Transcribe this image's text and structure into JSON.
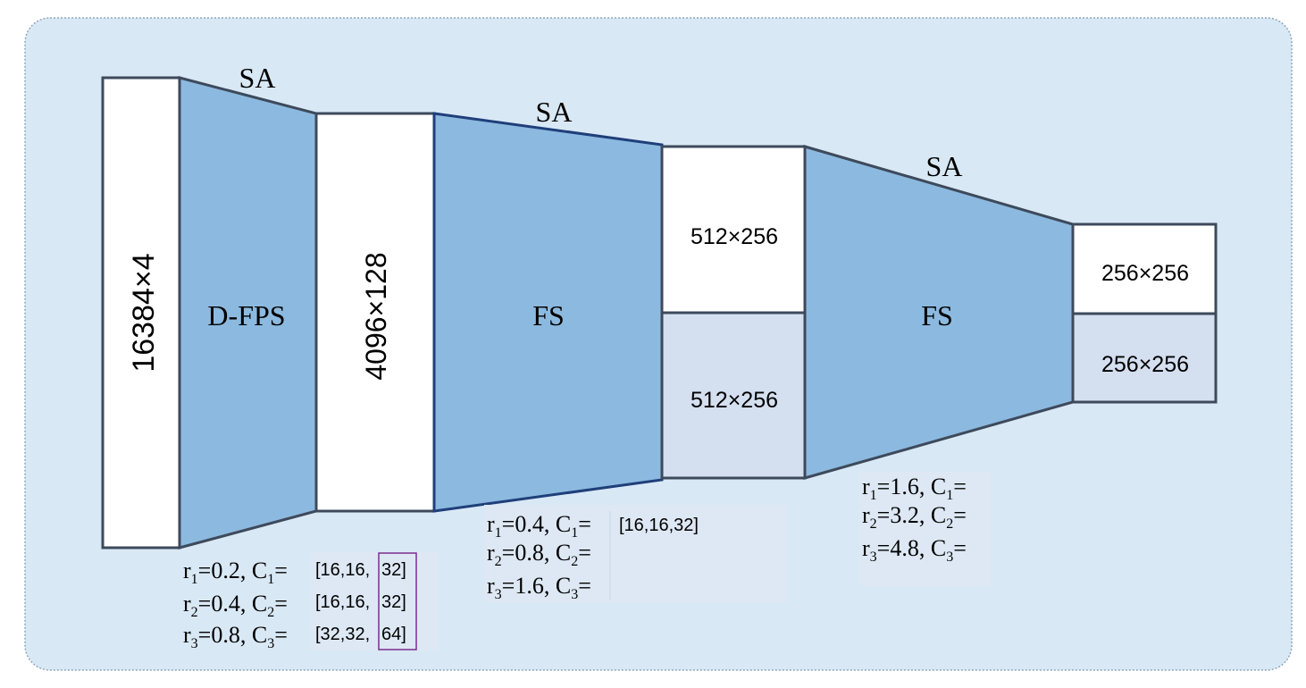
{
  "colors": {
    "background_panel": "#d9e8f5",
    "panel_border": "#8fa6bd",
    "trapezoid_fill": "#8cb9df",
    "trapezoid_stroke_dark": "#3d4a5c",
    "trapezoid_stroke_blue": "#1f3f7a",
    "box_white": "#ffffff",
    "box_light": "#d4dff0",
    "box_stroke": "#3d4a5c",
    "highlight_border": "#7b2d8e"
  },
  "stages": {
    "input": {
      "label": "16384×4"
    },
    "sa1": {
      "title": "SA",
      "method": "D-FPS"
    },
    "feat1": {
      "label": "4096×128"
    },
    "sa2": {
      "title": "SA",
      "method": "FS"
    },
    "feat2": {
      "top": "512×256",
      "bottom": "512×256"
    },
    "sa3": {
      "title": "SA",
      "method": "FS"
    },
    "feat3": {
      "top": "256×256",
      "bottom": "256×256"
    }
  },
  "params": {
    "sa1": [
      {
        "r": "r",
        "r_sub": "1",
        "r_val": "=0.2, C",
        "c_sub": "1",
        "eq": "=",
        "vec_a": "[16,16,",
        "vec_b": "32]"
      },
      {
        "r": "r",
        "r_sub": "2",
        "r_val": "=0.4, C",
        "c_sub": "2",
        "eq": "=",
        "vec_a": "[16,16,",
        "vec_b": "32]"
      },
      {
        "r": "r",
        "r_sub": "3",
        "r_val": "=0.8, C",
        "c_sub": "3",
        "eq": "=",
        "vec_a": "[32,32,",
        "vec_b": "64]"
      }
    ],
    "sa2": [
      {
        "r": "r",
        "r_sub": "1",
        "r_val": "=0.4, C",
        "c_sub": "1",
        "eq": "=",
        "vec": "[16,16,32]"
      },
      {
        "r": "r",
        "r_sub": "2",
        "r_val": "=0.8, C",
        "c_sub": "2",
        "eq": "="
      },
      {
        "r": "r",
        "r_sub": "3",
        "r_val": "=1.6, C",
        "c_sub": "3",
        "eq": "="
      }
    ],
    "sa3": [
      {
        "r": "r",
        "r_sub": "1",
        "r_val": "=1.6, C",
        "c_sub": "1",
        "eq": "="
      },
      {
        "r": "r",
        "r_sub": "2",
        "r_val": "=3.2, C",
        "c_sub": "2",
        "eq": "="
      },
      {
        "r": "r",
        "r_sub": "3",
        "r_val": "=4.8, C",
        "c_sub": "3",
        "eq": "="
      }
    ]
  }
}
